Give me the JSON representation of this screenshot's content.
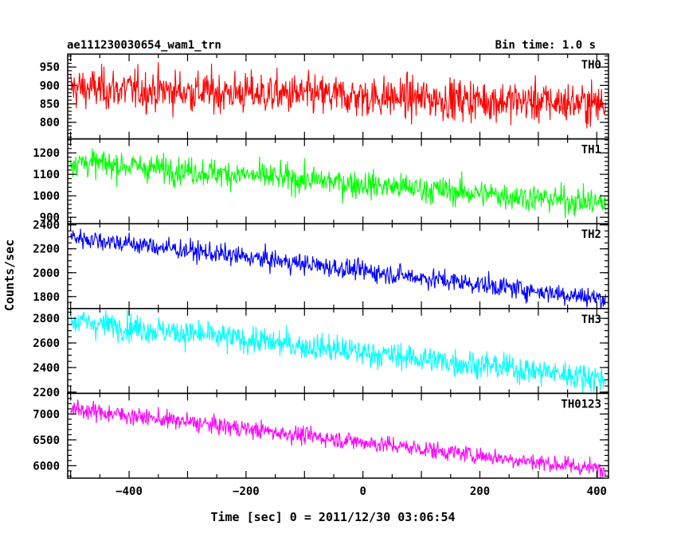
{
  "header": {
    "left_title": "ae111230030654_wam1_trn",
    "right_title": "Bin time: 1.0 s"
  },
  "chart_data": {
    "type": "line",
    "xlabel": "Time [sec] 0 = 2011/12/30 03:06:54",
    "ylabel": "Counts/sec",
    "xlim": [
      -505,
      420
    ],
    "x_ticks": [
      -400,
      -200,
      0,
      200,
      400
    ],
    "x_minor_step": 50,
    "bin_time_s": 1.0,
    "panels": [
      {
        "name": "TH0",
        "color": "#ff0000",
        "ylim": [
          755,
          985
        ],
        "y_ticks": [
          800,
          850,
          900,
          950
        ],
        "y_minor_step": 10,
        "trend_start": 893,
        "trend_end": 850,
        "noise": 28
      },
      {
        "name": "TH1",
        "color": "#00ff00",
        "ylim": [
          870,
          1265
        ],
        "y_ticks": [
          900,
          1000,
          1100,
          1200
        ],
        "y_minor_step": 20,
        "trend_start": 1160,
        "trend_end": 965,
        "noise": 32
      },
      {
        "name": "TH2",
        "color": "#0000ff",
        "ylim": [
          1700,
          2410
        ],
        "y_ticks": [
          1800,
          2000,
          2200,
          2400
        ],
        "y_minor_step": 50,
        "trend_start": 2300,
        "trend_end": 1780,
        "noise": 42
      },
      {
        "name": "TH3",
        "color": "#00ffff",
        "ylim": [
          2190,
          2880
        ],
        "y_ticks": [
          2200,
          2400,
          2600,
          2800
        ],
        "y_minor_step": 50,
        "trend_start": 2780,
        "trend_end": 2310,
        "noise": 55
      },
      {
        "name": "TH0123",
        "color": "#ff00ff",
        "ylim": [
          5760,
          7400
        ],
        "y_ticks": [
          6000,
          6500,
          7000
        ],
        "y_minor_step": 100,
        "trend_start": 7100,
        "trend_end": 5920,
        "noise": 85
      }
    ]
  }
}
